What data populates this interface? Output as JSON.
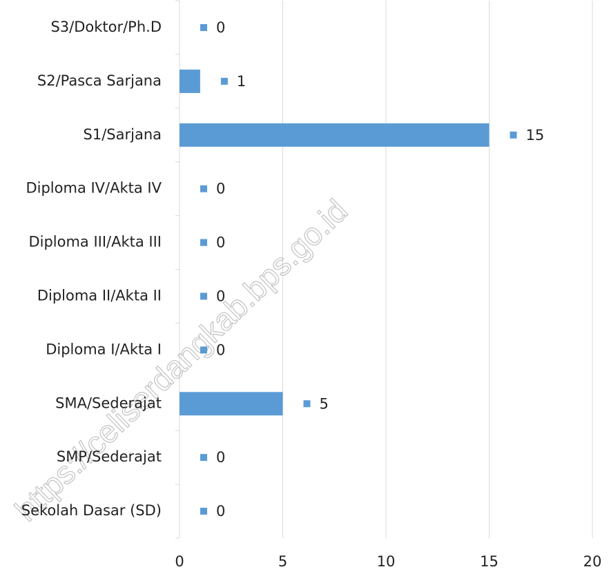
{
  "chart_data": {
    "type": "hbar",
    "categories": [
      "S3/Doktor/Ph.D",
      "S2/Pasca Sarjana",
      "S1/Sarjana",
      "Diploma IV/Akta IV",
      "Diploma III/Akta III",
      "Diploma II/Akta II",
      "Diploma I/Akta I",
      "SMA/Sederajat",
      "SMP/Sederajat",
      "Sekolah Dasar (SD)"
    ],
    "values": [
      0,
      1,
      15,
      0,
      0,
      0,
      0,
      5,
      0,
      0
    ],
    "color": "#5b9bd5",
    "xlim": [
      0,
      20
    ],
    "xticks": [
      0,
      5,
      10,
      15,
      20
    ],
    "grid": true
  },
  "watermark": "https://celiserdangkab.bps.go.id"
}
